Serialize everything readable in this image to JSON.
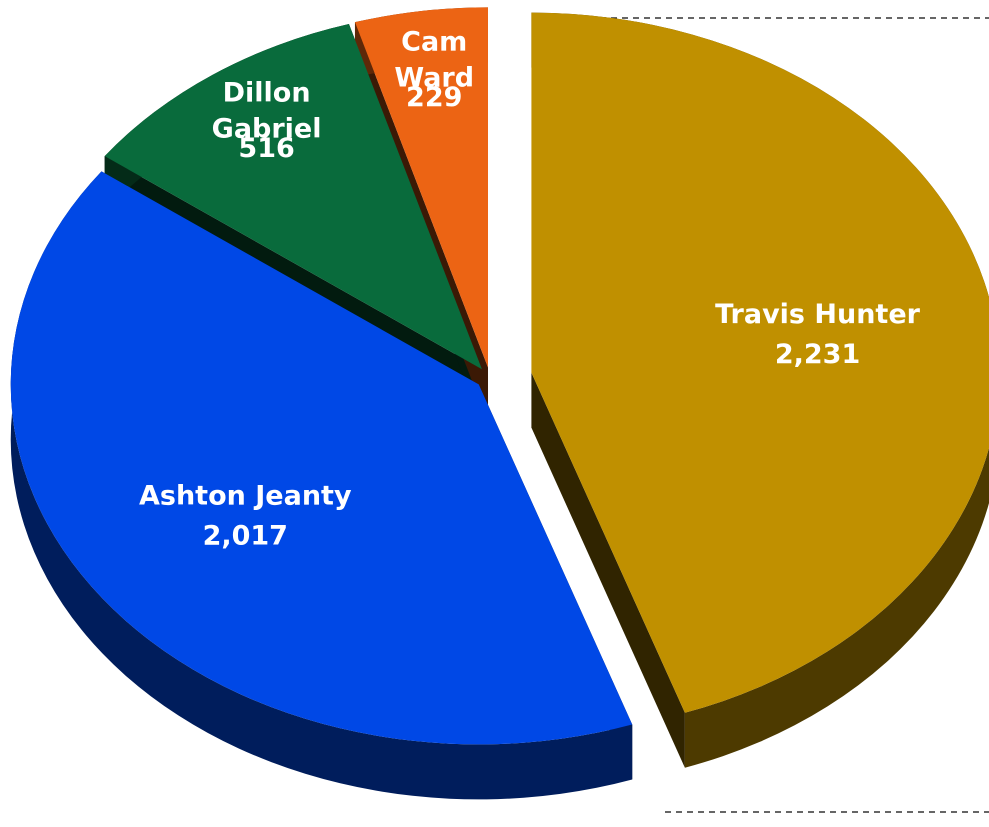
{
  "chart_data": {
    "type": "pie",
    "categories": [
      "Travis Hunter",
      "Ashton Jeanty",
      "Dillon Gabriel",
      "Cam Ward"
    ],
    "values": [
      2231,
      2017,
      516,
      229
    ],
    "value_labels": [
      "2,231",
      "2,017",
      "516",
      "229"
    ],
    "colors": [
      "#c09000",
      "#0048e6",
      "#096b3c",
      "#ec6414"
    ]
  }
}
